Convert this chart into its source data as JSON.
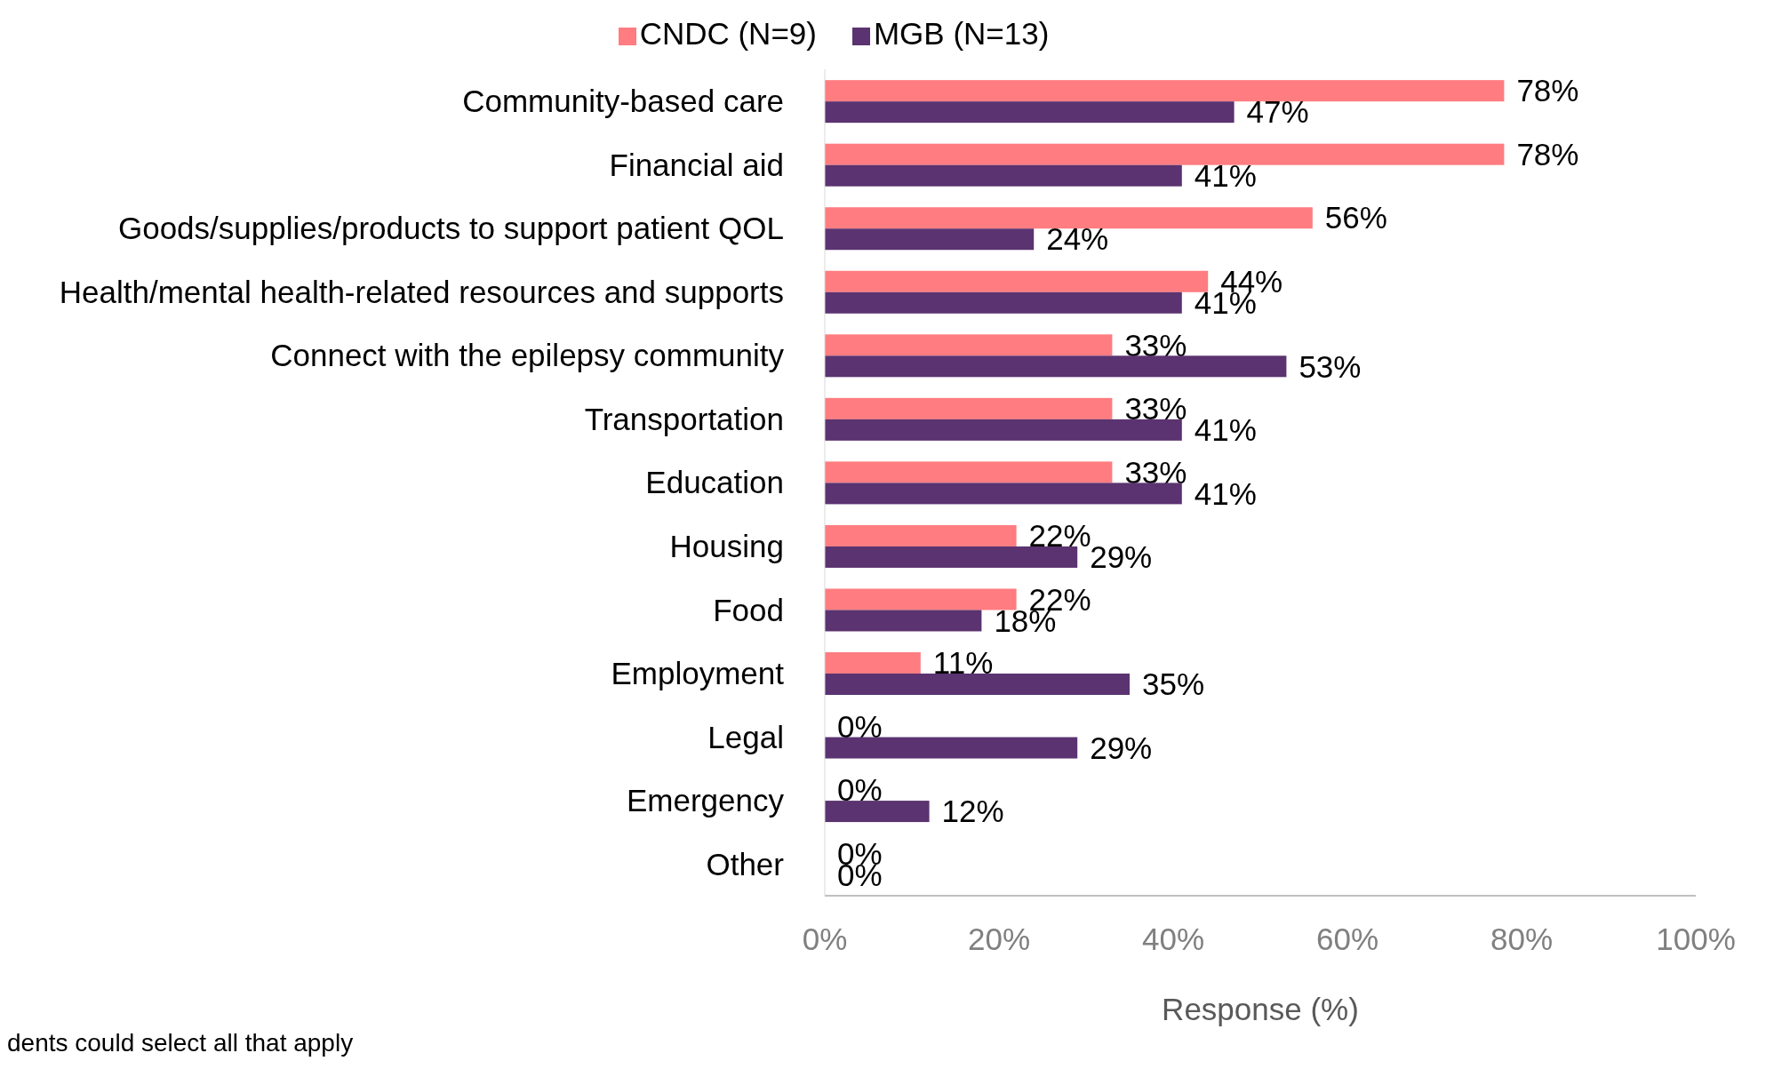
{
  "chart_data": {
    "type": "bar",
    "orientation": "horizontal",
    "categories": [
      "Community-based care",
      "Financial aid",
      "Goods/supplies/products to support patient QOL",
      "Health/mental health-related resources and supports",
      "Connect with the epilepsy community",
      "Transportation",
      "Education",
      "Housing",
      "Food",
      "Employment",
      "Legal",
      "Emergency",
      "Other"
    ],
    "series": [
      {
        "name": "CNDC (N=9)",
        "color": "#ff7c80",
        "values": [
          78,
          78,
          56,
          44,
          33,
          33,
          33,
          22,
          22,
          11,
          0,
          0,
          0
        ],
        "value_labels": [
          "78%",
          "78%",
          "56%",
          "44%",
          "33%",
          "33%",
          "33%",
          "22%",
          "22%",
          "11%",
          "0%",
          "0%",
          "0%"
        ]
      },
      {
        "name": "MGB (N=13)",
        "color": "#5b3370",
        "values": [
          47,
          41,
          24,
          41,
          53,
          41,
          41,
          29,
          18,
          35,
          29,
          12,
          0
        ],
        "value_labels": [
          "47%",
          "41%",
          "24%",
          "41%",
          "53%",
          "41%",
          "41%",
          "29%",
          "18%",
          "35%",
          "29%",
          "12%",
          "0%"
        ]
      }
    ],
    "xlim": [
      0,
      100
    ],
    "xticks": [
      {
        "value": 0,
        "label": "0%"
      },
      {
        "value": 20,
        "label": "20%"
      },
      {
        "value": 40,
        "label": "40%"
      },
      {
        "value": 60,
        "label": "60%"
      },
      {
        "value": 80,
        "label": "80%"
      },
      {
        "value": 100,
        "label": "100%"
      }
    ],
    "xlabel": "Response (%)",
    "legend": "top",
    "grid": false,
    "annotations": [
      "dents could select all that apply"
    ]
  }
}
